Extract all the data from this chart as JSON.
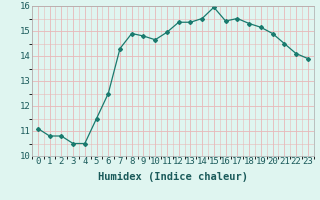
{
  "x": [
    0,
    1,
    2,
    3,
    4,
    5,
    6,
    7,
    8,
    9,
    10,
    11,
    12,
    13,
    14,
    15,
    16,
    17,
    18,
    19,
    20,
    21,
    22,
    23
  ],
  "y": [
    11.1,
    10.8,
    10.8,
    10.5,
    10.5,
    11.5,
    12.5,
    14.3,
    14.9,
    14.8,
    14.65,
    14.95,
    15.35,
    15.35,
    15.5,
    15.95,
    15.4,
    15.5,
    15.3,
    15.15,
    14.9,
    14.5,
    14.1,
    13.9
  ],
  "line_color": "#1a7a6e",
  "marker": "D",
  "marker_size": 2.0,
  "bg_color": "#dff5f0",
  "grid_color": "#e8b8b8",
  "xlabel": "Humidex (Indice chaleur)",
  "ylim": [
    10,
    16
  ],
  "xlim": [
    -0.5,
    23.5
  ],
  "yticks": [
    10,
    11,
    12,
    13,
    14,
    15,
    16
  ],
  "xticks": [
    0,
    1,
    2,
    3,
    4,
    5,
    6,
    7,
    8,
    9,
    10,
    11,
    12,
    13,
    14,
    15,
    16,
    17,
    18,
    19,
    20,
    21,
    22,
    23
  ],
  "xlabel_fontsize": 7.5,
  "tick_fontsize": 6.5
}
